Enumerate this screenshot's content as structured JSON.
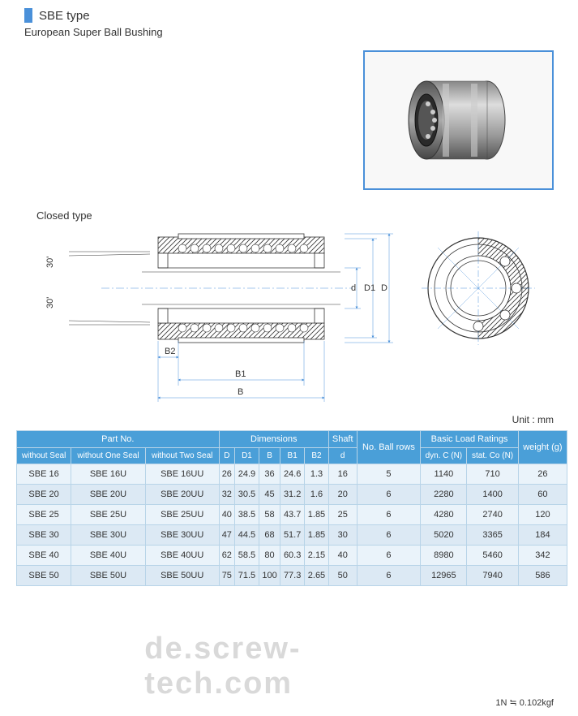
{
  "header": {
    "type_title": "SBE type",
    "subtitle": "European Super Ball Bushing",
    "closed_label": "Closed type",
    "unit_label": "Unit : mm",
    "footnote": "1N ≒ 0.102kgf",
    "watermark": "de.screw-tech.com"
  },
  "colors": {
    "accent": "#4a90d9",
    "table_header": "#4a9fd8",
    "table_border": "#b8d4e8",
    "row_odd": "#eaf3fa",
    "row_even": "#dce9f4"
  },
  "diagram": {
    "labels": {
      "angle1": "30'",
      "angle2": "30'",
      "B": "B",
      "B1": "B1",
      "B2": "B2",
      "d": "d",
      "D1": "D1",
      "D": "D"
    }
  },
  "table": {
    "groups": [
      {
        "label": "Part No.",
        "span": 3
      },
      {
        "label": "Dimensions",
        "span": 5
      },
      {
        "label": "Shaft",
        "span": 1
      },
      {
        "label": "No. Ball rows",
        "span": 1,
        "rowspan": 2
      },
      {
        "label": "Basic Load Ratings",
        "span": 2
      },
      {
        "label": "weight (g)",
        "span": 1,
        "rowspan": 2
      }
    ],
    "subheaders": [
      "without Seal",
      "without One Seal",
      "without Two Seal",
      "D",
      "D1",
      "B",
      "B1",
      "B2",
      "d",
      "dyn. C (N)",
      "stat. Co (N)"
    ],
    "rows": [
      [
        "SBE 16",
        "SBE 16U",
        "SBE 16UU",
        "26",
        "24.9",
        "36",
        "24.6",
        "1.3",
        "16",
        "5",
        "1140",
        "710",
        "26"
      ],
      [
        "SBE 20",
        "SBE 20U",
        "SBE 20UU",
        "32",
        "30.5",
        "45",
        "31.2",
        "1.6",
        "20",
        "6",
        "2280",
        "1400",
        "60"
      ],
      [
        "SBE 25",
        "SBE 25U",
        "SBE 25UU",
        "40",
        "38.5",
        "58",
        "43.7",
        "1.85",
        "25",
        "6",
        "4280",
        "2740",
        "120"
      ],
      [
        "SBE 30",
        "SBE 30U",
        "SBE 30UU",
        "47",
        "44.5",
        "68",
        "51.7",
        "1.85",
        "30",
        "6",
        "5020",
        "3365",
        "184"
      ],
      [
        "SBE 40",
        "SBE 40U",
        "SBE 40UU",
        "62",
        "58.5",
        "80",
        "60.3",
        "2.15",
        "40",
        "6",
        "8980",
        "5460",
        "342"
      ],
      [
        "SBE 50",
        "SBE 50U",
        "SBE 50UU",
        "75",
        "71.5",
        "100",
        "77.3",
        "2.65",
        "50",
        "6",
        "12965",
        "7940",
        "586"
      ]
    ]
  }
}
